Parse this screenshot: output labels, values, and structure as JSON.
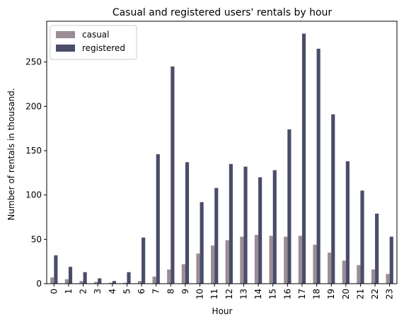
{
  "chart_data": {
    "type": "bar",
    "title": "Casual and registered users' rentals by hour",
    "xlabel": "Hour",
    "ylabel": "Number of rentals in thousand.",
    "categories": [
      "0",
      "1",
      "2",
      "3",
      "4",
      "5",
      "6",
      "7",
      "8",
      "9",
      "10",
      "11",
      "12",
      "13",
      "14",
      "15",
      "16",
      "17",
      "18",
      "19",
      "20",
      "21",
      "22",
      "23"
    ],
    "series": [
      {
        "name": "casual",
        "color": "#9b8c96",
        "values": [
          7,
          5,
          3,
          2,
          1,
          1,
          3,
          8,
          16,
          22,
          34,
          43,
          49,
          53,
          55,
          54,
          53,
          54,
          44,
          35,
          26,
          21,
          16,
          11
        ]
      },
      {
        "name": "registered",
        "color": "#4a4d69",
        "values": [
          32,
          19,
          13,
          6,
          3,
          13,
          52,
          146,
          245,
          137,
          92,
          108,
          135,
          132,
          120,
          128,
          174,
          282,
          265,
          191,
          138,
          105,
          79,
          53
        ]
      }
    ],
    "yticks": [
      0,
      50,
      100,
      150,
      200,
      250
    ],
    "ylim": [
      0,
      296
    ],
    "legend": "top-left",
    "grid": false
  }
}
